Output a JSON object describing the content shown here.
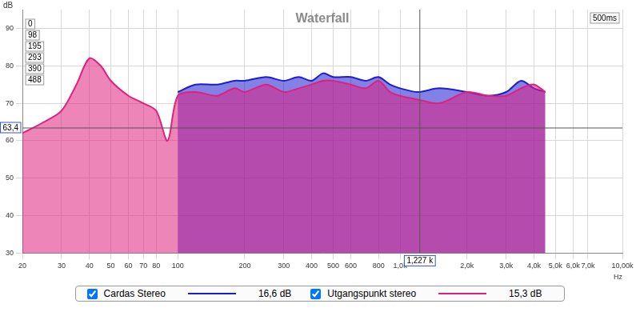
{
  "chart_data": {
    "type": "line",
    "title": "Waterfall",
    "x_label": "Hz",
    "y_label": "dB",
    "log": "x",
    "grid": true,
    "legend": "bottom",
    "xlim": [
      20,
      10000
    ],
    "xticks": [
      20,
      30,
      40,
      50,
      60,
      70,
      80,
      100,
      200,
      300,
      400,
      500,
      600,
      800,
      {
        "value": 1000,
        "label": "1,0k"
      },
      {
        "value": 2000,
        "label": "2,0k"
      },
      {
        "value": 3000,
        "label": "3,0k"
      },
      {
        "value": 4000,
        "label": "4,0k"
      },
      {
        "value": 5000,
        "label": "5,0k"
      },
      {
        "value": 6000,
        "label": "6,0k"
      },
      {
        "value": 7000,
        "label": "7,0k"
      },
      {
        "value": 10000,
        "label": "10,00k"
      }
    ],
    "ylim": [
      30,
      95
    ],
    "yticks": [
      30,
      40,
      50,
      60,
      70,
      80,
      90
    ],
    "x": [
      20,
      25,
      30,
      35,
      40,
      45,
      50,
      60,
      70,
      80,
      90,
      100,
      120,
      150,
      180,
      200,
      250,
      300,
      350,
      400,
      450,
      500,
      600,
      700,
      800,
      900,
      1000,
      1200,
      1500,
      2000,
      2500,
      3000,
      3500,
      4000,
      4500
    ],
    "series": [
      {
        "name": "Utgangspunkt stereo",
        "color": "#e0207f",
        "legend_label": "15,3 dB",
        "values": [
          62,
          65,
          68,
          75,
          82,
          80,
          76,
          72,
          70,
          68,
          60,
          72,
          73,
          72,
          74,
          73,
          75,
          73,
          74,
          75,
          76,
          76,
          75,
          74,
          76,
          73,
          72,
          71,
          70,
          73,
          72,
          72,
          74,
          75,
          73
        ]
      },
      {
        "name": "Cardas Stereo",
        "color": "#1c1cd0",
        "legend_label": "16,6 dB",
        "values": [
          null,
          null,
          null,
          null,
          null,
          null,
          null,
          null,
          null,
          null,
          null,
          73,
          75,
          75,
          76,
          76,
          77,
          76,
          77,
          76,
          78,
          77,
          77,
          76,
          77,
          75,
          74,
          73,
          74,
          73,
          72,
          73,
          76,
          74,
          73
        ]
      }
    ],
    "time_ticks": [
      0,
      98,
      195,
      293,
      390,
      488
    ],
    "time_label": "500ms",
    "cursor": {
      "x": 1227,
      "x_label": "1,227 k",
      "y": 63.4,
      "y_label": "63,4"
    }
  }
}
